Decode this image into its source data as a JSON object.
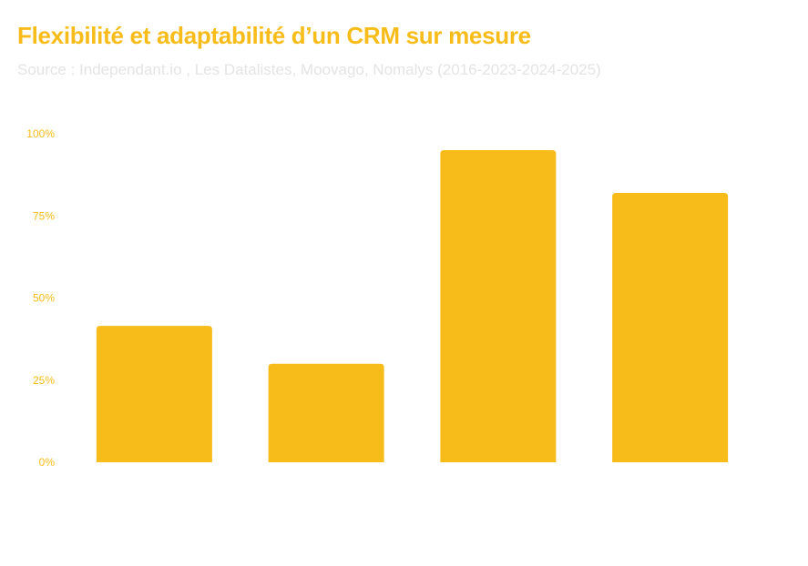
{
  "header": {
    "title": "Flexibilité et adaptabilité d’un CRM sur mesure",
    "subtitle": "Source : Independant.io , Les Datalistes, Moovago, Nomalys (2016-2023-2024-2025)"
  },
  "colors": {
    "accent": "#F8BC1A",
    "title": "#F8BC1A",
    "subtitle": "#E4E4E4",
    "tick_label": "#F8BC1A"
  },
  "chart_data": {
    "type": "bar",
    "title": "Flexibilité et adaptabilité d’un CRM sur mesure",
    "subtitle": "Source : Independant.io , Les Datalistes, Moovago, Nomalys (2016-2023-2024-2025)",
    "categories": [
      "",
      "",
      "",
      ""
    ],
    "values": [
      41.5,
      30,
      95,
      82
    ],
    "xlabel": "",
    "ylabel": "",
    "ylim": [
      0,
      100
    ],
    "yticks": [
      0,
      25,
      50,
      75,
      100
    ],
    "ytick_labels": [
      "0%",
      "25%",
      "50%",
      "75%",
      "100%"
    ],
    "grid": false,
    "legend": "none"
  }
}
